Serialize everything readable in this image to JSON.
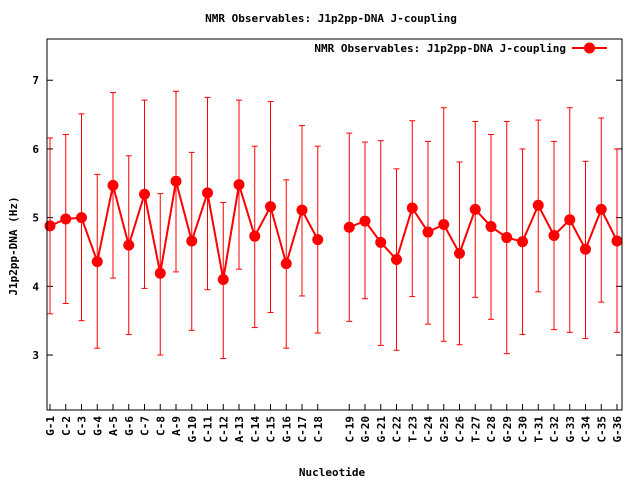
{
  "chart_data": {
    "type": "line",
    "title": "NMR Observables: J1p2pp-DNA J-coupling",
    "xlabel": "Nucleotide",
    "ylabel": "J1p2pp-DNA (Hz)",
    "ylim": [
      2.2,
      7.6
    ],
    "yticks": [
      3,
      4,
      5,
      6,
      7
    ],
    "grid": false,
    "legend_position": "top-right",
    "series": [
      {
        "name": "NMR Observables: J1p2pp-DNA J-coupling",
        "color": "#ff0000",
        "x": [
          "G-1",
          "C-2",
          "C-3",
          "G-4",
          "A-5",
          "G-6",
          "C-7",
          "C-8",
          "A-9",
          "G-10",
          "C-11",
          "C-12",
          "A-13",
          "C-14",
          "C-15",
          "G-16",
          "C-17",
          "C-18",
          "C-19",
          "G-20",
          "G-21",
          "C-22",
          "T-23",
          "C-24",
          "G-25",
          "C-26",
          "T-27",
          "C-28",
          "G-29",
          "C-30",
          "T-31",
          "C-32",
          "G-33",
          "C-34",
          "C-35",
          "G-36"
        ],
        "segments": [
          {
            "categories": [
              "G-1",
              "C-2",
              "C-3",
              "G-4",
              "A-5",
              "G-6",
              "C-7",
              "C-8",
              "A-9",
              "G-10",
              "C-11",
              "C-12",
              "A-13",
              "C-14",
              "C-15",
              "G-16",
              "C-17",
              "C-18"
            ]
          },
          {
            "categories": [
              "C-19",
              "G-20",
              "G-21",
              "C-22",
              "T-23",
              "C-24",
              "G-25",
              "C-26",
              "T-27",
              "C-28",
              "G-29",
              "C-30",
              "T-31",
              "C-32",
              "G-33",
              "C-34",
              "C-35",
              "G-36"
            ]
          }
        ],
        "values": [
          4.88,
          4.98,
          5.0,
          4.36,
          5.47,
          4.6,
          5.34,
          4.19,
          5.53,
          4.66,
          5.36,
          4.1,
          5.48,
          4.73,
          5.16,
          4.33,
          5.11,
          4.68,
          4.86,
          4.95,
          4.64,
          4.39,
          5.14,
          4.79,
          4.9,
          4.48,
          5.12,
          4.87,
          4.71,
          4.65,
          5.18,
          4.74,
          4.97,
          4.54,
          5.12,
          4.66
        ],
        "err_low": [
          3.6,
          3.75,
          3.5,
          3.1,
          4.12,
          3.3,
          3.97,
          3.0,
          4.21,
          3.36,
          3.95,
          2.95,
          4.25,
          3.4,
          3.62,
          3.1,
          3.86,
          3.32,
          3.49,
          3.82,
          3.14,
          3.07,
          3.85,
          3.45,
          3.2,
          3.15,
          3.84,
          3.52,
          3.02,
          3.3,
          3.92,
          3.37,
          3.33,
          3.24,
          3.77,
          3.33
        ],
        "err_high": [
          6.16,
          6.21,
          6.51,
          5.63,
          6.82,
          5.9,
          6.71,
          5.35,
          6.84,
          5.95,
          6.75,
          5.22,
          6.71,
          6.04,
          6.69,
          5.55,
          6.34,
          6.04,
          6.23,
          6.1,
          6.12,
          5.71,
          6.41,
          6.11,
          6.6,
          5.81,
          6.4,
          6.21,
          6.4,
          6.0,
          6.42,
          6.11,
          6.6,
          5.82,
          6.45,
          6.0
        ]
      }
    ]
  }
}
